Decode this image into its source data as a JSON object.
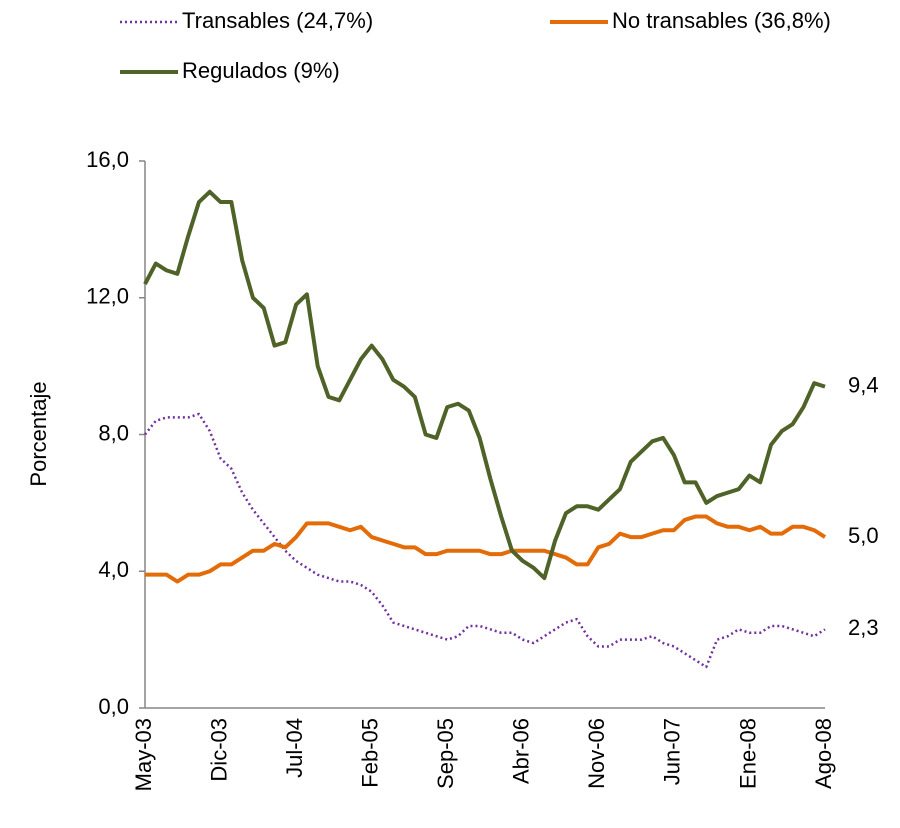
{
  "chart_data": {
    "type": "line",
    "ylabel": "Porcentaje",
    "ylim": [
      0,
      16
    ],
    "yticks": [
      {
        "value": 0,
        "label": "0,0"
      },
      {
        "value": 4,
        "label": "4,0"
      },
      {
        "value": 8,
        "label": "8,0"
      },
      {
        "value": 12,
        "label": "12,0"
      },
      {
        "value": 16,
        "label": "16,0"
      }
    ],
    "categories": [
      "May-03",
      null,
      null,
      null,
      null,
      null,
      null,
      "Dic-03",
      null,
      null,
      null,
      null,
      null,
      null,
      "Jul-04",
      null,
      null,
      null,
      null,
      null,
      null,
      "Feb-05",
      null,
      null,
      null,
      null,
      null,
      null,
      "Sep-05",
      null,
      null,
      null,
      null,
      null,
      null,
      "Abr-06",
      null,
      null,
      null,
      null,
      null,
      null,
      "Nov-06",
      null,
      null,
      null,
      null,
      null,
      null,
      "Jun-07",
      null,
      null,
      null,
      null,
      null,
      null,
      "Ene-08",
      null,
      null,
      null,
      null,
      null,
      null,
      "Ago-08"
    ],
    "series": [
      {
        "name": "Transables (24,7%)",
        "color": "#7030a0",
        "dash": "dotted",
        "end_label": "2,3",
        "values": [
          8.0,
          8.4,
          8.5,
          8.5,
          8.5,
          8.6,
          8.1,
          7.3,
          7.0,
          6.3,
          5.8,
          5.4,
          5.0,
          4.6,
          4.3,
          4.1,
          3.9,
          3.8,
          3.7,
          3.7,
          3.6,
          3.4,
          3.0,
          2.5,
          2.4,
          2.3,
          2.2,
          2.1,
          2.0,
          2.1,
          2.4,
          2.4,
          2.3,
          2.2,
          2.2,
          2.0,
          1.9,
          2.1,
          2.3,
          2.5,
          2.6,
          2.1,
          1.8,
          1.8,
          2.0,
          2.0,
          2.0,
          2.1,
          1.9,
          1.8,
          1.6,
          1.4,
          1.2,
          2.0,
          2.1,
          2.3,
          2.2,
          2.2,
          2.4,
          2.4,
          2.3,
          2.2,
          2.1,
          2.3
        ]
      },
      {
        "name": "No transables (36,8%)",
        "color": "#e36c09",
        "dash": "solid",
        "end_label": "5,0",
        "values": [
          3.9,
          3.9,
          3.9,
          3.7,
          3.9,
          3.9,
          4.0,
          4.2,
          4.2,
          4.4,
          4.6,
          4.6,
          4.8,
          4.7,
          5.0,
          5.4,
          5.4,
          5.4,
          5.3,
          5.2,
          5.3,
          5.0,
          4.9,
          4.8,
          4.7,
          4.7,
          4.5,
          4.5,
          4.6,
          4.6,
          4.6,
          4.6,
          4.5,
          4.5,
          4.6,
          4.6,
          4.6,
          4.6,
          4.5,
          4.4,
          4.2,
          4.2,
          4.7,
          4.8,
          5.1,
          5.0,
          5.0,
          5.1,
          5.2,
          5.2,
          5.5,
          5.6,
          5.6,
          5.4,
          5.3,
          5.3,
          5.2,
          5.3,
          5.1,
          5.1,
          5.3,
          5.3,
          5.2,
          5.0
        ]
      },
      {
        "name": "Regulados (9%)",
        "color": "#4f6228",
        "dash": "solid",
        "end_label": "9,4",
        "values": [
          12.4,
          13.0,
          12.8,
          12.7,
          13.8,
          14.8,
          15.1,
          14.8,
          14.8,
          13.1,
          12.0,
          11.7,
          10.6,
          10.7,
          11.8,
          12.1,
          10.0,
          9.1,
          9.0,
          9.6,
          10.2,
          10.6,
          10.2,
          9.6,
          9.4,
          9.1,
          8.0,
          7.9,
          8.8,
          8.9,
          8.7,
          7.9,
          6.7,
          5.6,
          4.6,
          4.3,
          4.1,
          3.8,
          4.9,
          5.7,
          5.9,
          5.9,
          5.8,
          6.1,
          6.4,
          7.2,
          7.5,
          7.8,
          7.9,
          7.4,
          6.6,
          6.6,
          6.0,
          6.2,
          6.3,
          6.4,
          6.8,
          6.6,
          7.7,
          8.1,
          8.3,
          8.8,
          9.5,
          9.4
        ]
      }
    ]
  }
}
